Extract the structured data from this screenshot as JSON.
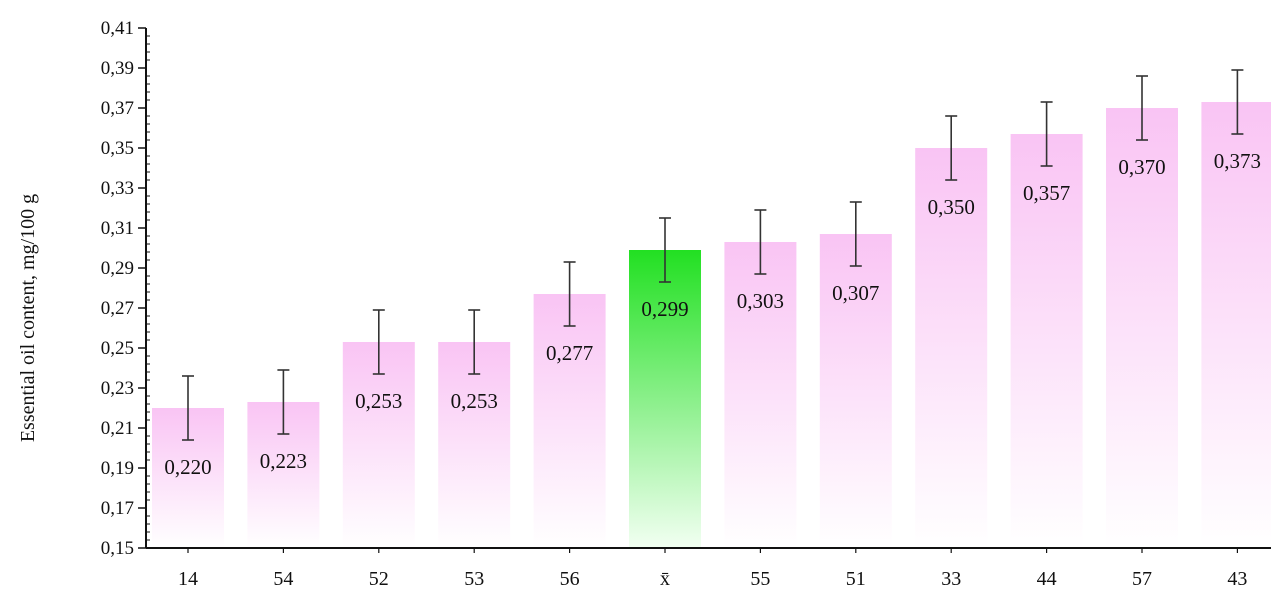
{
  "chart_data": {
    "type": "bar",
    "title": "",
    "xlabel": "",
    "ylabel": "Essential oil content, mg/100 g",
    "categories": [
      "14",
      "54",
      "52",
      "53",
      "56",
      "x̄",
      "55",
      "51",
      "33",
      "44",
      "57",
      "43"
    ],
    "values": [
      0.22,
      0.223,
      0.253,
      0.253,
      0.277,
      0.299,
      0.303,
      0.307,
      0.35,
      0.357,
      0.37,
      0.373
    ],
    "value_labels": [
      "0,220",
      "0,223",
      "0,253",
      "0,253",
      "0,277",
      "0,299",
      "0,303",
      "0,307",
      "0,350",
      "0,357",
      "0,370",
      "0,373"
    ],
    "error": 0.016,
    "ylim": [
      0.15,
      0.41
    ],
    "yticks": [
      0.15,
      0.17,
      0.19,
      0.21,
      0.23,
      0.25,
      0.27,
      0.29,
      0.31,
      0.33,
      0.35,
      0.37,
      0.39,
      0.41
    ],
    "ytick_labels": [
      "0,15",
      "0,17",
      "0,19",
      "0,21",
      "0,23",
      "0,25",
      "0,27",
      "0,29",
      "0,31",
      "0,33",
      "0,35",
      "0,37",
      "0,39",
      "0,41"
    ],
    "highlight_index": 5,
    "grid": false,
    "colors": {
      "bar": "#f9c4f4",
      "bar_fade": "#ffffff",
      "highlight": "#22e022",
      "highlight_fade": "#f2fff2",
      "axis": "#111111",
      "error_bar": "#333333"
    }
  }
}
